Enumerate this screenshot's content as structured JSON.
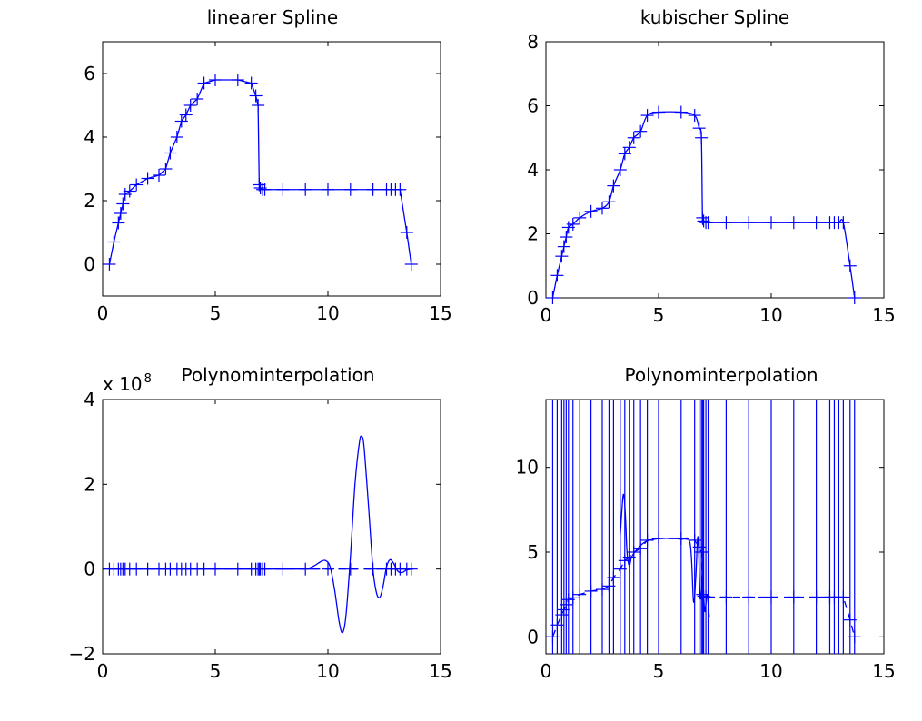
{
  "chart_data": [
    {
      "type": "line",
      "title": "linearer Spline",
      "xlabel": "",
      "ylabel": "",
      "xlim": [
        0,
        15
      ],
      "ylim": [
        -1,
        7
      ],
      "xticks": [
        0,
        5,
        10,
        15
      ],
      "yticks": [
        0,
        2,
        4,
        6
      ],
      "tick_labels_x": [
        "0",
        "5",
        "10",
        "15"
      ],
      "tick_labels_y": [
        "0",
        "2",
        "4",
        "6"
      ],
      "curve": "linear",
      "series": [
        {
          "marker": "+",
          "x": [
            0.3,
            0.5,
            0.7,
            0.8,
            0.9,
            1.0,
            1.2,
            1.5,
            2.0,
            2.5,
            2.8,
            3.0,
            3.3,
            3.5,
            3.7,
            3.9,
            4.2,
            4.5,
            5.0,
            6.0,
            6.6,
            6.8,
            6.9,
            6.95,
            7.0,
            7.1,
            7.2,
            8.0,
            9.0,
            10.0,
            11.0,
            12.0,
            12.6,
            12.8,
            13.0,
            13.2,
            13.5,
            13.7
          ],
          "y": [
            0.0,
            0.7,
            1.3,
            1.6,
            1.9,
            2.2,
            2.3,
            2.5,
            2.7,
            2.8,
            3.0,
            3.5,
            4.0,
            4.5,
            4.7,
            5.0,
            5.2,
            5.7,
            5.8,
            5.8,
            5.7,
            5.3,
            5.0,
            2.5,
            2.4,
            2.35,
            2.35,
            2.35,
            2.35,
            2.35,
            2.35,
            2.35,
            2.35,
            2.35,
            2.35,
            2.35,
            1.0,
            0.0
          ]
        }
      ]
    },
    {
      "type": "line",
      "title": "kubischer Spline",
      "xlabel": "",
      "ylabel": "",
      "xlim": [
        0,
        15
      ],
      "ylim": [
        0,
        8
      ],
      "xticks": [
        0,
        5,
        10,
        15
      ],
      "yticks": [
        0,
        2,
        4,
        6,
        8
      ],
      "tick_labels_x": [
        "0",
        "5",
        "10",
        "15"
      ],
      "tick_labels_y": [
        "0",
        "2",
        "4",
        "6",
        "8"
      ],
      "curve": "cubic",
      "series": [
        {
          "marker": "+",
          "x": [
            0.3,
            0.5,
            0.7,
            0.8,
            0.9,
            1.0,
            1.2,
            1.5,
            2.0,
            2.5,
            2.8,
            3.0,
            3.3,
            3.5,
            3.7,
            3.9,
            4.2,
            4.5,
            5.0,
            6.0,
            6.6,
            6.8,
            6.9,
            6.95,
            7.0,
            7.1,
            7.2,
            8.0,
            9.0,
            10.0,
            11.0,
            12.0,
            12.6,
            12.8,
            13.0,
            13.2,
            13.5,
            13.7
          ],
          "y": [
            0.0,
            0.7,
            1.3,
            1.6,
            1.9,
            2.2,
            2.3,
            2.5,
            2.7,
            2.8,
            3.0,
            3.5,
            4.0,
            4.5,
            4.7,
            5.0,
            5.2,
            5.7,
            5.8,
            5.8,
            5.7,
            5.3,
            5.0,
            2.5,
            2.4,
            2.35,
            2.35,
            2.35,
            2.35,
            2.35,
            2.35,
            2.35,
            2.35,
            2.35,
            2.35,
            2.35,
            1.0,
            0.0
          ]
        }
      ]
    },
    {
      "type": "line",
      "title": "Polynominterpolation",
      "xlabel": "",
      "ylabel": "",
      "xlim": [
        0,
        15
      ],
      "ylim": [
        -2,
        4
      ],
      "xticks": [
        0,
        5,
        10,
        15
      ],
      "yticks": [
        -2,
        0,
        2,
        4
      ],
      "tick_labels_x": [
        "0",
        "5",
        "10",
        "15"
      ],
      "tick_labels_y": [
        "−2",
        "0",
        "2",
        "4"
      ],
      "exponent_label": "x 10",
      "exponent_power": "8",
      "markers": {
        "x": [
          0.3,
          0.5,
          0.7,
          0.8,
          0.9,
          1.0,
          1.2,
          1.5,
          2.0,
          2.5,
          2.8,
          3.0,
          3.3,
          3.5,
          3.7,
          3.9,
          4.2,
          4.5,
          5.0,
          6.0,
          6.6,
          6.8,
          6.9,
          6.95,
          7.0,
          7.1,
          7.2,
          8.0,
          9.0,
          10.0,
          11.0,
          12.0,
          12.6,
          12.8,
          13.0,
          13.2,
          13.5,
          13.7
        ],
        "y": 0
      },
      "series": [
        {
          "x": [
            0.3,
            8.8,
            9.1,
            9.4,
            9.7,
            9.9,
            10.1,
            10.3,
            10.5,
            10.65,
            10.8,
            11.0,
            11.2,
            11.4,
            11.5,
            11.6,
            11.8,
            12.0,
            12.15,
            12.3,
            12.45,
            12.6,
            12.75,
            12.9,
            13.1,
            13.3,
            13.5,
            13.8
          ],
          "y": [
            0,
            0,
            0.01,
            0.08,
            0.18,
            0.2,
            0.05,
            -0.5,
            -1.25,
            -1.5,
            -1.1,
            0.3,
            2.0,
            3.0,
            3.12,
            2.9,
            1.5,
            0,
            -0.55,
            -0.67,
            -0.4,
            0.05,
            0.22,
            0.15,
            -0.05,
            -0.08,
            -0.02,
            0
          ]
        }
      ]
    },
    {
      "type": "line",
      "title": "Polynominterpolation",
      "xlabel": "",
      "ylabel": "",
      "xlim": [
        0,
        15
      ],
      "ylim": [
        -1,
        14
      ],
      "xticks": [
        0,
        5,
        10,
        15
      ],
      "yticks": [
        0,
        5,
        10
      ],
      "tick_labels_x": [
        "0",
        "5",
        "10",
        "15"
      ],
      "tick_labels_y": [
        "0",
        "5",
        "10"
      ],
      "curve": "polynomial, clipped to axes",
      "markers": {
        "x": [
          0.3,
          0.5,
          0.7,
          0.8,
          0.9,
          1.0,
          1.2,
          1.5,
          2.0,
          2.5,
          2.8,
          3.0,
          3.3,
          3.5,
          3.7,
          3.9,
          4.2,
          4.5,
          5.0,
          6.0,
          6.6,
          6.8,
          6.9,
          6.95,
          7.0,
          7.1,
          7.2,
          8.0,
          9.0,
          10.0,
          11.0,
          12.0,
          12.6,
          12.8,
          13.0,
          13.2,
          13.5,
          13.7
        ],
        "y": [
          0.0,
          0.7,
          1.3,
          1.6,
          1.9,
          2.2,
          2.3,
          2.5,
          2.7,
          2.8,
          3.0,
          3.5,
          4.0,
          4.5,
          4.7,
          5.0,
          5.2,
          5.7,
          5.8,
          5.8,
          5.7,
          5.3,
          5.0,
          2.5,
          2.4,
          2.35,
          2.35,
          2.35,
          2.35,
          2.35,
          2.35,
          2.35,
          2.35,
          2.35,
          2.35,
          2.35,
          1.0,
          0.0
        ]
      },
      "series": [
        {
          "x": [
            3.3,
            3.4,
            3.45,
            3.5,
            3.55,
            3.6,
            3.7,
            3.8,
            4.0,
            4.4,
            5.0,
            5.6,
            6.0,
            6.4,
            6.55,
            6.65,
            6.75,
            6.85,
            6.95,
            7.05,
            7.15,
            7.25
          ],
          "y": [
            6.0,
            8.0,
            8.4,
            7.8,
            6.5,
            5.0,
            4.2,
            4.7,
            5.1,
            5.6,
            5.8,
            5.8,
            5.75,
            5.5,
            2.1,
            3.5,
            5.9,
            2.3,
            3.4,
            1.5,
            2.5,
            1.2
          ]
        }
      ],
      "vertical_lines_x": [
        0.3,
        0.5,
        0.7,
        0.8,
        0.9,
        1.0,
        1.2,
        1.5,
        2.0,
        2.5,
        2.8,
        3.0,
        3.3,
        3.5,
        3.7,
        3.9,
        4.2,
        4.5,
        5.0,
        6.0,
        6.6,
        6.8,
        6.9,
        6.95,
        7.0,
        7.1,
        7.2,
        8.0,
        9.0,
        10.0,
        11.0,
        12.0,
        12.6,
        12.8,
        13.0,
        13.2,
        13.5,
        13.7
      ]
    }
  ]
}
